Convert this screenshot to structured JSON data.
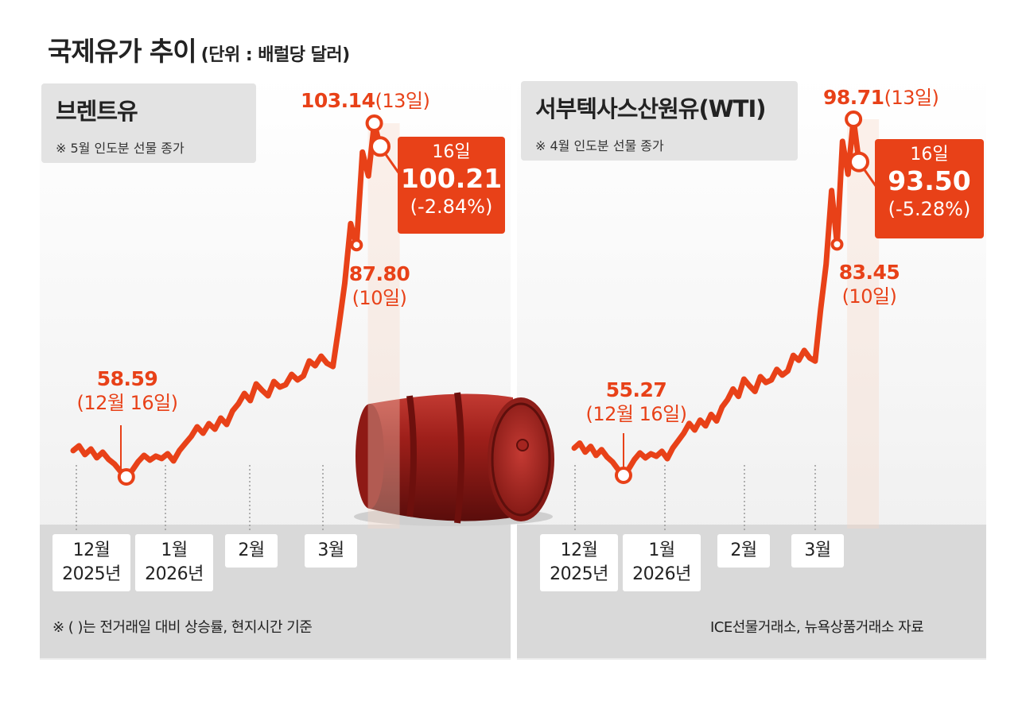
{
  "header": {
    "title": "국제유가 추이",
    "unit": "(단위 : 배럴당 달러)"
  },
  "colors": {
    "line": "#e84118",
    "panel": "#e3e3e3",
    "callout": "#e84118"
  },
  "x_ticks": {
    "dec": [
      "12월",
      "2025년"
    ],
    "jan": [
      "1월",
      "2026년"
    ],
    "feb": "2월",
    "mar": "3월"
  },
  "footnote_left": "※ (     )는 전거래일 대비 상승률, 현지시간 기준",
  "source": "ICE선물거래소, 뉴욕상품거래소 자료",
  "chart_data": [
    {
      "type": "line",
      "title": "브렌트유",
      "subtitle": "※ 5월 인도분 선물 종가",
      "x_ticks": [
        "12월 2025년",
        "1월 2026년",
        "2월",
        "3월"
      ],
      "y_anchors": {
        "low": 58.59,
        "high": 103.14
      },
      "series": [
        {
          "values": [
            61.9,
            62.5,
            61.4,
            62.1,
            61.0,
            61.7,
            60.8,
            60.2,
            59.3,
            58.59,
            59.4,
            60.5,
            61.3,
            60.7,
            61.2,
            60.9,
            61.5,
            60.6,
            61.9,
            62.8,
            63.7,
            64.9,
            64.1,
            65.3,
            64.6,
            66.0,
            65.2,
            66.9,
            67.8,
            69.1,
            68.2,
            70.3,
            69.5,
            68.8,
            70.6,
            69.9,
            70.2,
            71.5,
            70.8,
            71.3,
            73.2,
            72.6,
            73.8,
            72.9,
            72.5,
            77.5,
            83.0,
            90.5,
            87.8,
            99.5,
            96.5,
            103.14,
            100.21
          ]
        }
      ],
      "annotations": {
        "low": {
          "value": "58.59",
          "date": "(12월 16일)"
        },
        "mid": {
          "value": "87.80",
          "date": "(10일)"
        },
        "peak": {
          "value": "103.14",
          "date": "(13일)"
        },
        "last": {
          "date": "16일",
          "value": "100.21",
          "change": "(-2.84%)"
        }
      }
    },
    {
      "type": "line",
      "title": "서부텍사스산원유(WTI)",
      "subtitle": "※ 4월 인도분 선물 종가",
      "x_ticks": [
        "12월 2025년",
        "1월 2026년",
        "2월",
        "3월"
      ],
      "y_anchors": {
        "low": 55.27,
        "high": 98.71
      },
      "series": [
        {
          "values": [
            58.6,
            59.2,
            58.1,
            58.8,
            57.7,
            58.4,
            57.5,
            56.9,
            56.0,
            55.27,
            56.1,
            57.2,
            58.0,
            57.4,
            57.9,
            57.6,
            58.2,
            57.3,
            58.6,
            59.5,
            60.4,
            61.6,
            60.8,
            62.0,
            61.3,
            62.7,
            61.9,
            63.6,
            64.5,
            65.8,
            64.9,
            67.0,
            66.2,
            65.5,
            67.3,
            66.6,
            66.9,
            68.2,
            67.5,
            68.0,
            69.9,
            69.3,
            70.5,
            69.6,
            69.2,
            75.5,
            81.0,
            90.0,
            83.45,
            96.0,
            92.0,
            98.71,
            93.5
          ]
        }
      ],
      "annotations": {
        "low": {
          "value": "55.27",
          "date": "(12월 16일)"
        },
        "mid": {
          "value": "83.45",
          "date": "(10일)"
        },
        "peak": {
          "value": "98.71",
          "date": "(13일)"
        },
        "last": {
          "date": "16일",
          "value": "93.50",
          "change": "(-5.28%)"
        }
      }
    }
  ]
}
